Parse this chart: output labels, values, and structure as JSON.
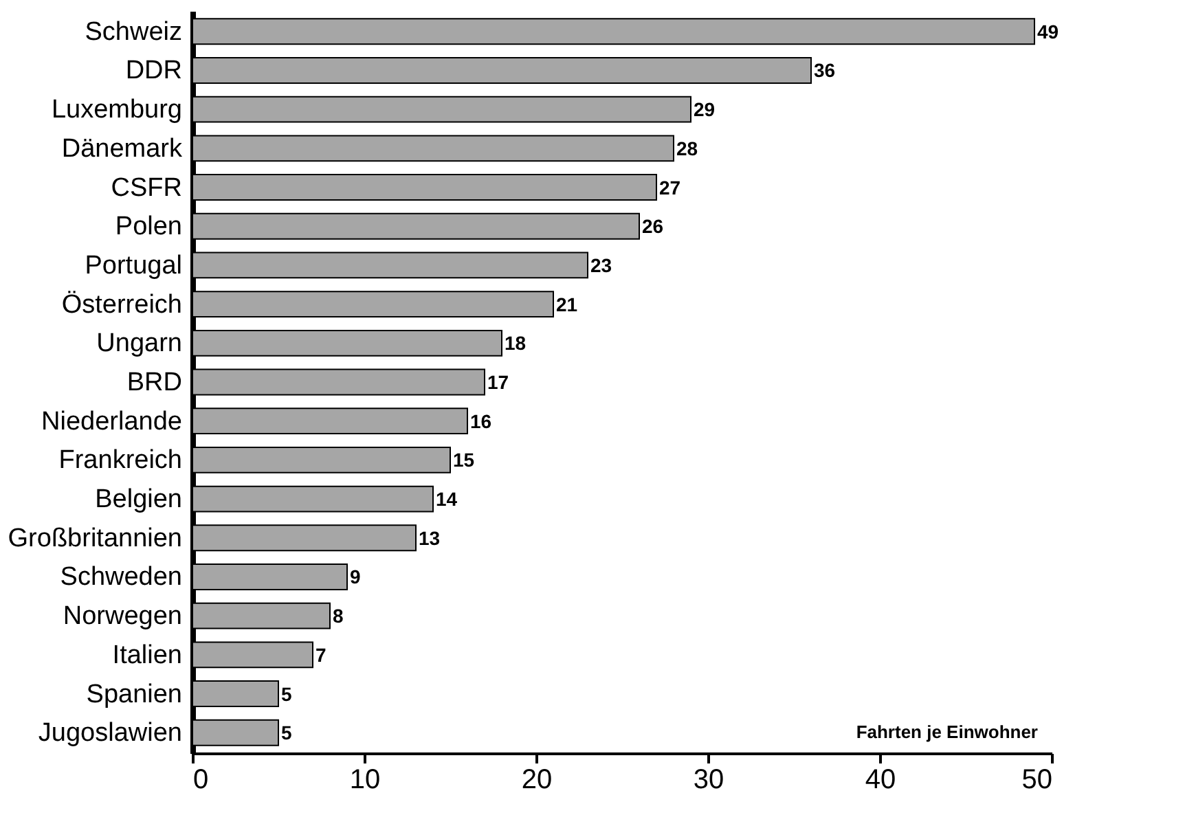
{
  "chart_data": {
    "type": "bar",
    "orientation": "horizontal",
    "categories": [
      "Schweiz",
      "DDR",
      "Luxemburg",
      "Dänemark",
      "CSFR",
      "Polen",
      "Portugal",
      "Österreich",
      "Ungarn",
      "BRD",
      "Niederlande",
      "Frankreich",
      "Belgien",
      "Großbritannien",
      "Schweden",
      "Norwegen",
      "Italien",
      "Spanien",
      "Jugoslawien"
    ],
    "values": [
      49,
      36,
      29,
      28,
      27,
      26,
      23,
      21,
      18,
      17,
      16,
      15,
      14,
      13,
      9,
      8,
      7,
      5,
      5
    ],
    "color": "#a6a6a6",
    "xlim": [
      0,
      50
    ],
    "xticks": [
      0,
      10,
      20,
      30,
      40,
      50
    ],
    "data_labels": true,
    "annotations": [
      "Fahrten je Einwohner"
    ]
  }
}
